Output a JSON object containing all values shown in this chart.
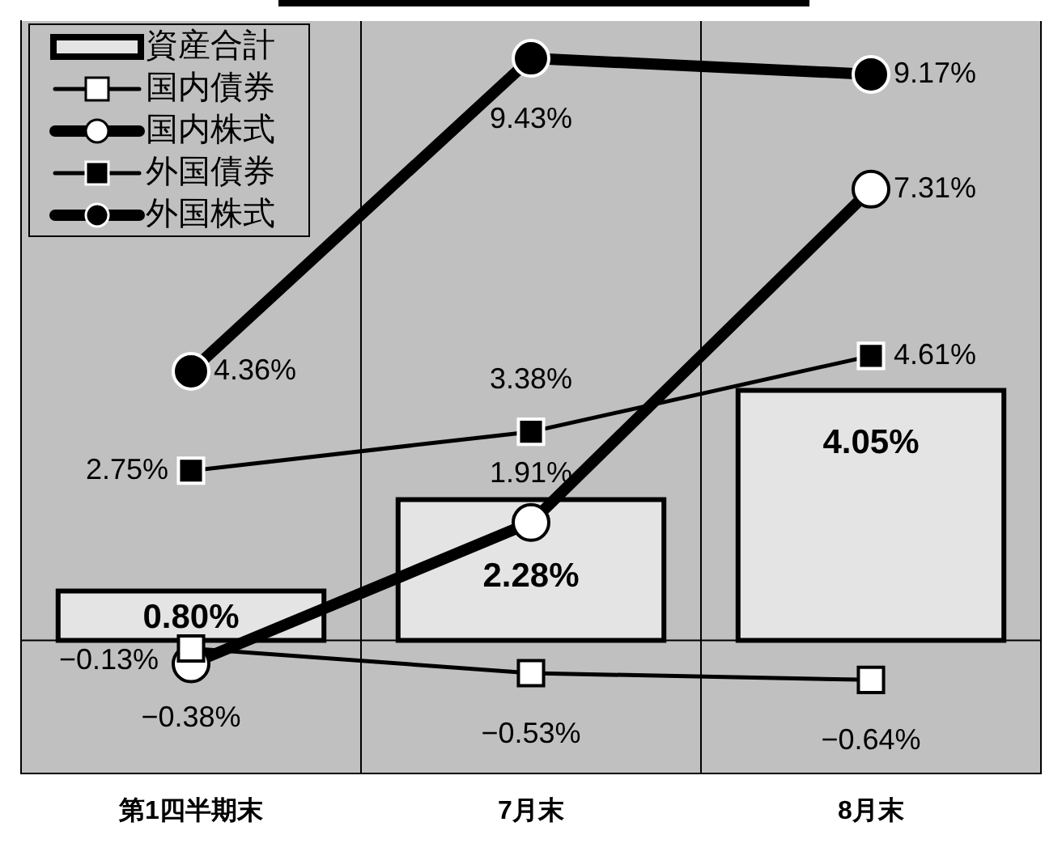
{
  "chart_data": {
    "type": "bar",
    "categories": [
      "第1四半期末",
      "7月末",
      "8月末"
    ],
    "series": [
      {
        "name": "資産合計",
        "color": "#e4e4e4",
        "values": [
          0.8,
          2.28,
          4.05
        ],
        "value_labels": [
          "0.80%",
          "2.28%",
          "4.05%"
        ]
      },
      {
        "name": "国内債券",
        "type": "line",
        "marker": "square",
        "color": "#ffffff",
        "values": [
          -0.13,
          -0.53,
          -0.64
        ],
        "value_labels": [
          "−0.13%",
          "−0.53%",
          "−0.64%"
        ]
      },
      {
        "name": "国内株式",
        "type": "line",
        "marker": "circle",
        "color": "#ffffff",
        "values": [
          -0.38,
          1.91,
          7.31
        ],
        "value_labels": [
          "−0.38%",
          "1.91%",
          "7.31%"
        ]
      },
      {
        "name": "外国債券",
        "type": "line",
        "marker": "square",
        "color": "#000000",
        "values": [
          2.75,
          3.38,
          4.61
        ],
        "value_labels": [
          "2.75%",
          "3.38%",
          "4.61%"
        ]
      },
      {
        "name": "外国株式",
        "type": "line",
        "marker": "circle",
        "color": "#000000",
        "values": [
          4.36,
          9.43,
          9.17
        ],
        "value_labels": [
          "4.36%",
          "9.43%",
          "9.17%"
        ]
      }
    ],
    "tick_labels": "x",
    "grid": "x",
    "legend": "top left"
  }
}
